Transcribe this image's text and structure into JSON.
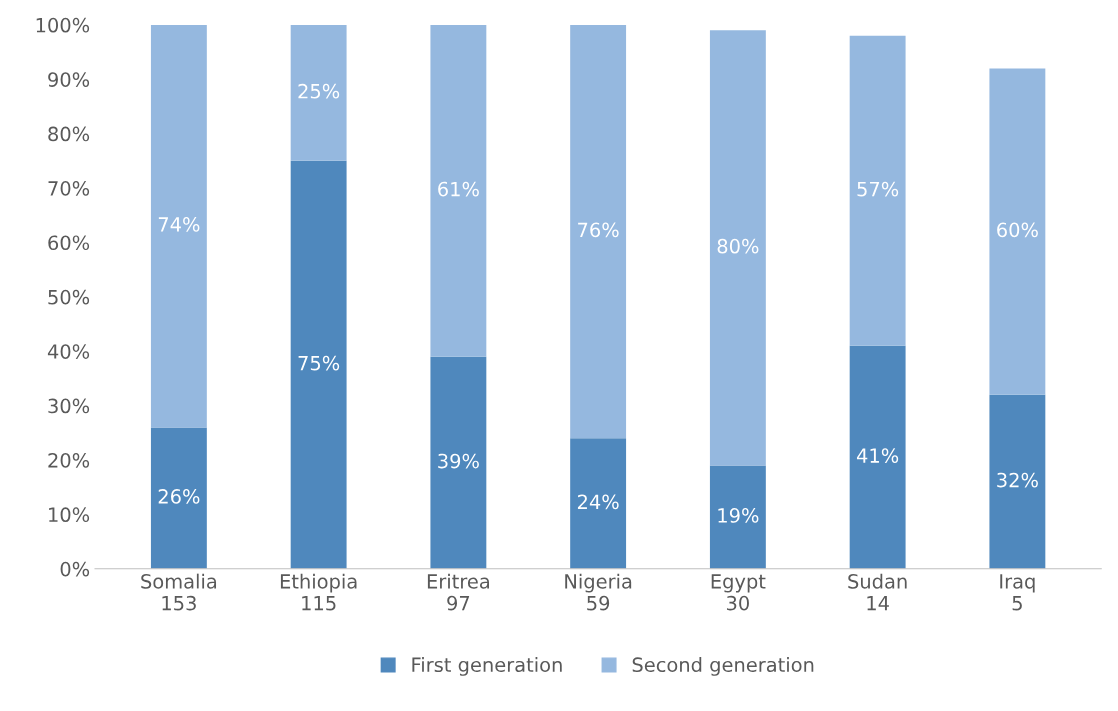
{
  "chart_data": {
    "type": "bar",
    "stacked": true,
    "categories": [
      "Somalia\n153",
      "Ethiopia\n115",
      "Eritrea\n97",
      "Nigeria\n59",
      "Egypt\n30",
      "Sudan\n14",
      "Iraq\n5"
    ],
    "series": [
      {
        "name": "First generation",
        "color": "#4f88bd",
        "values": [
          26,
          75,
          39,
          24,
          19,
          41,
          32
        ],
        "value_labels": [
          "26%",
          "75%",
          "39%",
          "24%",
          "19%",
          "41%",
          "32%"
        ]
      },
      {
        "name": "Second generation",
        "color": "#95b8df",
        "values": [
          74,
          25,
          61,
          76,
          80,
          57,
          60
        ],
        "value_labels": [
          "74%",
          "25%",
          "61%",
          "76%",
          "80%",
          "57%",
          "60%"
        ]
      }
    ],
    "ylim": [
      0,
      100
    ],
    "yticks": [
      {
        "value": 0,
        "label": "0%"
      },
      {
        "value": 10,
        "label": "10%"
      },
      {
        "value": 20,
        "label": "20%"
      },
      {
        "value": 30,
        "label": "30%"
      },
      {
        "value": 40,
        "label": "40%"
      },
      {
        "value": 50,
        "label": "50%"
      },
      {
        "value": 60,
        "label": "60%"
      },
      {
        "value": 70,
        "label": "70%"
      },
      {
        "value": 80,
        "label": "80%"
      },
      {
        "value": 90,
        "label": "90%"
      },
      {
        "value": 100,
        "label": "100%"
      }
    ],
    "grid": false,
    "legend": "bottom"
  }
}
